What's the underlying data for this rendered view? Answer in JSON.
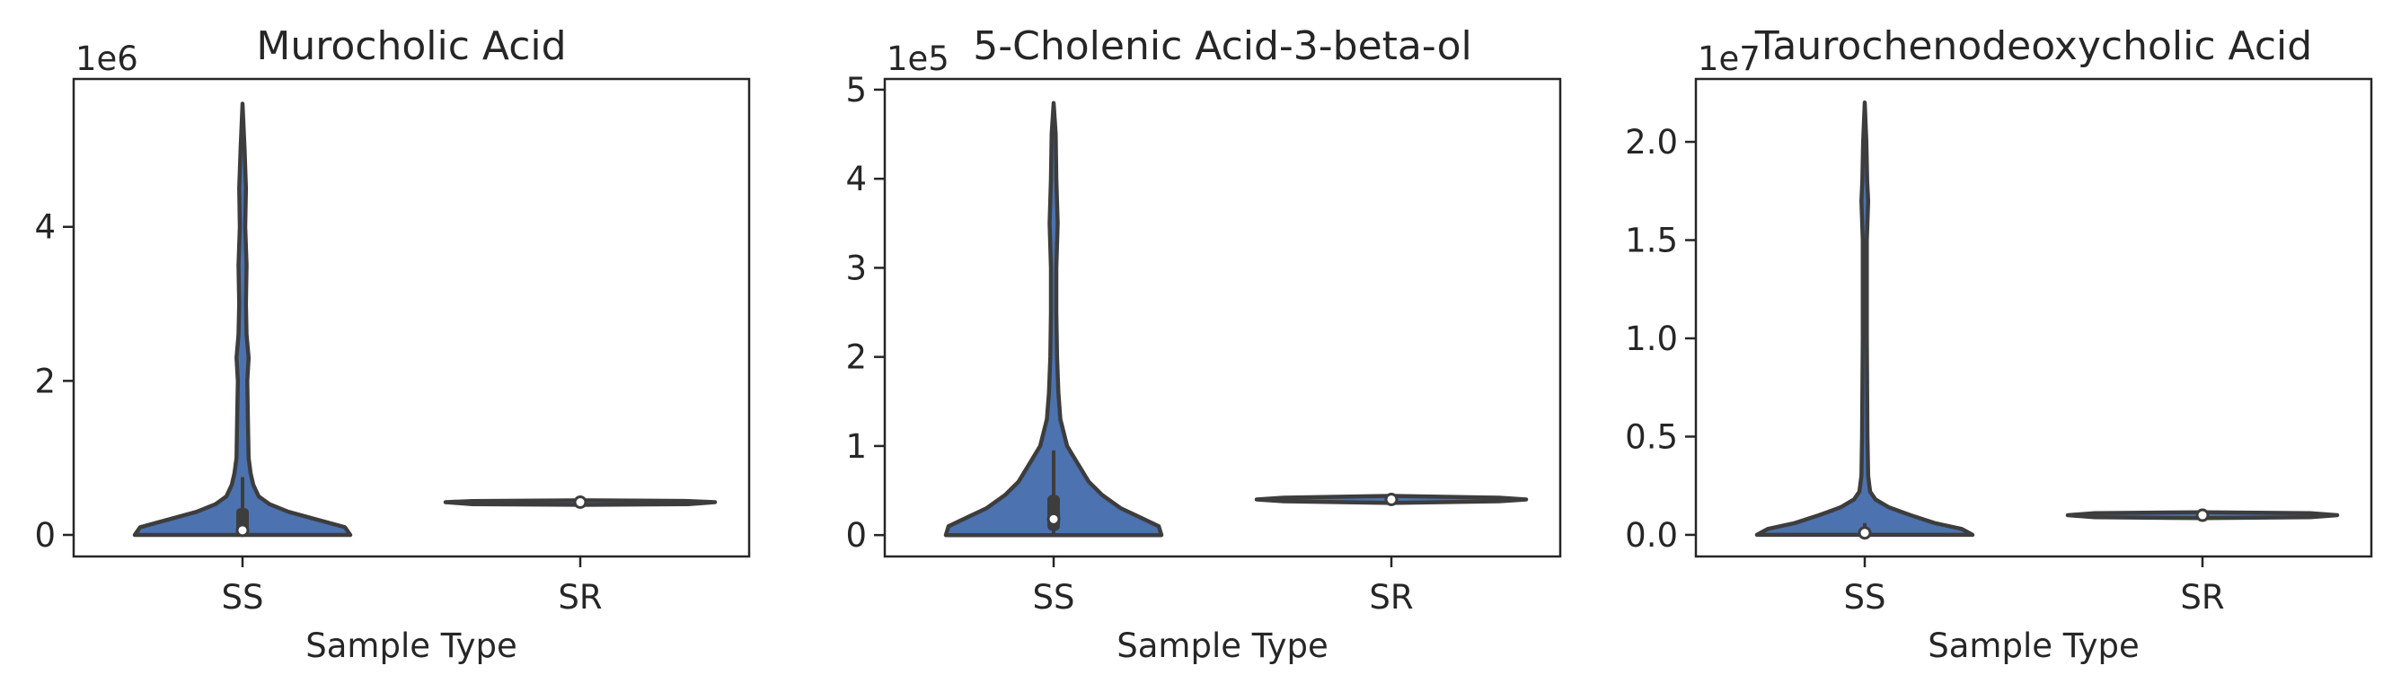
{
  "chart_data": [
    {
      "type": "violin",
      "title": "Murocholic Acid",
      "xlabel": "Sample Type",
      "ylabel": "",
      "offset_label": "1e6",
      "scale": 1000000,
      "categories": [
        "SS",
        "SR"
      ],
      "ylim": [
        -0.28,
        5.92
      ],
      "yticks": [
        0,
        2,
        4
      ],
      "ytick_labels": [
        "0",
        "2",
        "4"
      ],
      "fill_color": "#4c72b0",
      "groups": [
        {
          "category": "SS",
          "min": 0.0,
          "max": 5.6,
          "q1": 0.02,
          "median": 0.06,
          "q3": 0.35,
          "whisker_high": 0.75,
          "density": [
            [
              0.0,
              0.8
            ],
            [
              0.1,
              0.76
            ],
            [
              0.2,
              0.55
            ],
            [
              0.3,
              0.34
            ],
            [
              0.4,
              0.2
            ],
            [
              0.5,
              0.12
            ],
            [
              0.65,
              0.08
            ],
            [
              0.8,
              0.06
            ],
            [
              1.0,
              0.045
            ],
            [
              1.5,
              0.04
            ],
            [
              2.0,
              0.035
            ],
            [
              2.3,
              0.045
            ],
            [
              2.6,
              0.03
            ],
            [
              3.0,
              0.025
            ],
            [
              3.5,
              0.03
            ],
            [
              4.0,
              0.02
            ],
            [
              4.5,
              0.025
            ],
            [
              5.0,
              0.015
            ],
            [
              5.6,
              0.0
            ]
          ]
        },
        {
          "category": "SR",
          "min": 0.39,
          "max": 0.45,
          "q1": 0.41,
          "median": 0.425,
          "q3": 0.44,
          "whisker_high": 0.45,
          "density": [
            [
              0.39,
              0.0
            ],
            [
              0.4,
              0.8
            ],
            [
              0.425,
              1.0
            ],
            [
              0.44,
              0.8
            ],
            [
              0.45,
              0.0
            ]
          ]
        }
      ]
    },
    {
      "type": "violin",
      "title": "5-Cholenic Acid-3-beta-ol",
      "xlabel": "Sample Type",
      "ylabel": "",
      "offset_label": "1e5",
      "scale": 100000,
      "categories": [
        "SS",
        "SR"
      ],
      "ylim": [
        -0.24,
        5.12
      ],
      "yticks": [
        0,
        1,
        2,
        3,
        4,
        5
      ],
      "ytick_labels": [
        "0",
        "1",
        "2",
        "3",
        "4",
        "5"
      ],
      "fill_color": "#4c72b0",
      "groups": [
        {
          "category": "SS",
          "min": 0.0,
          "max": 4.85,
          "q1": 0.05,
          "median": 0.18,
          "q3": 0.45,
          "whisker_high": 0.95,
          "density": [
            [
              0.0,
              0.8
            ],
            [
              0.1,
              0.78
            ],
            [
              0.2,
              0.64
            ],
            [
              0.3,
              0.5
            ],
            [
              0.45,
              0.36
            ],
            [
              0.6,
              0.26
            ],
            [
              0.8,
              0.18
            ],
            [
              1.0,
              0.1
            ],
            [
              1.3,
              0.05
            ],
            [
              1.6,
              0.035
            ],
            [
              2.0,
              0.025
            ],
            [
              2.5,
              0.02
            ],
            [
              3.0,
              0.02
            ],
            [
              3.5,
              0.03
            ],
            [
              4.0,
              0.02
            ],
            [
              4.5,
              0.015
            ],
            [
              4.85,
              0.0
            ]
          ]
        },
        {
          "category": "SR",
          "min": 0.36,
          "max": 0.44,
          "q1": 0.38,
          "median": 0.4,
          "q3": 0.42,
          "whisker_high": 0.44,
          "density": [
            [
              0.36,
              0.0
            ],
            [
              0.38,
              0.8
            ],
            [
              0.4,
              1.0
            ],
            [
              0.42,
              0.8
            ],
            [
              0.44,
              0.0
            ]
          ]
        }
      ]
    },
    {
      "type": "violin",
      "title": "Taurochenodeoxycholic Acid",
      "xlabel": "Sample Type",
      "ylabel": "",
      "offset_label": "1e7",
      "scale": 10000000,
      "categories": [
        "SS",
        "SR"
      ],
      "ylim": [
        -0.11,
        2.32
      ],
      "yticks": [
        0.0,
        0.5,
        1.0,
        1.5,
        2.0
      ],
      "ytick_labels": [
        "0.0",
        "0.5",
        "1.0",
        "1.5",
        "2.0"
      ],
      "fill_color": "#4c72b0",
      "groups": [
        {
          "category": "SS",
          "min": 0.0,
          "max": 2.2,
          "q1": 0.0,
          "median": 0.01,
          "q3": 0.03,
          "whisker_high": 0.06,
          "density": [
            [
              0.0,
              0.8
            ],
            [
              0.03,
              0.72
            ],
            [
              0.06,
              0.52
            ],
            [
              0.1,
              0.34
            ],
            [
              0.14,
              0.18
            ],
            [
              0.18,
              0.08
            ],
            [
              0.22,
              0.04
            ],
            [
              0.3,
              0.025
            ],
            [
              0.5,
              0.02
            ],
            [
              1.0,
              0.015
            ],
            [
              1.5,
              0.015
            ],
            [
              1.7,
              0.025
            ],
            [
              1.8,
              0.018
            ],
            [
              2.0,
              0.012
            ],
            [
              2.2,
              0.0
            ]
          ]
        },
        {
          "category": "SR",
          "min": 0.085,
          "max": 0.115,
          "q1": 0.09,
          "median": 0.1,
          "q3": 0.11,
          "whisker_high": 0.115,
          "density": [
            [
              0.085,
              0.0
            ],
            [
              0.09,
              0.8
            ],
            [
              0.1,
              1.0
            ],
            [
              0.11,
              0.8
            ],
            [
              0.115,
              0.0
            ]
          ]
        }
      ]
    }
  ]
}
